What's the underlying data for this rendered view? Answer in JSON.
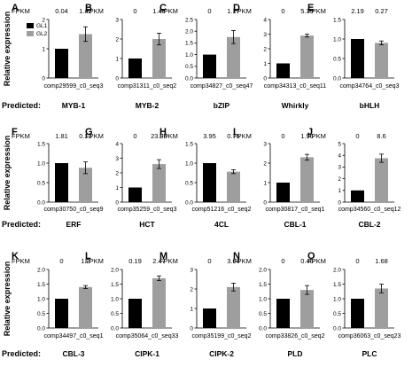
{
  "labels": {
    "ylabel": "Relative expression",
    "predicted": "Predicted:",
    "fpkm": "FPKM"
  },
  "legend": [
    {
      "name": "GL1",
      "color": "#000000"
    },
    {
      "name": "GL2",
      "color": "#9e9e9e"
    }
  ],
  "colors": {
    "GL1": "#000000",
    "GL2": "#9e9e9e"
  },
  "chart_data": [
    {
      "type": "bar",
      "panel": "A",
      "gene": "comp29599_c0_seq3",
      "predicted": "MYB-1",
      "fpkm": [
        "0.04",
        "1.42"
      ],
      "categories": [
        "GL1",
        "GL2"
      ],
      "values": [
        1.0,
        1.5
      ],
      "errors": [
        0,
        0.25
      ],
      "ylim": [
        0,
        2
      ],
      "yticks": [
        "0",
        "1",
        "2"
      ]
    },
    {
      "type": "bar",
      "panel": "B",
      "gene": "comp31311_c0_seq2",
      "predicted": "MYB-2",
      "fpkm": [
        "0",
        "1.48"
      ],
      "categories": [
        "GL1",
        "GL2"
      ],
      "values": [
        1.0,
        2.0
      ],
      "errors": [
        0,
        0.3
      ],
      "ylim": [
        0,
        3
      ],
      "yticks": [
        "0",
        "1",
        "2",
        "3"
      ]
    },
    {
      "type": "bar",
      "panel": "C",
      "gene": "comp34827_c0_seq47",
      "predicted": "bZIP",
      "fpkm": [
        "0",
        "1.17"
      ],
      "categories": [
        "GL1",
        "GL2"
      ],
      "values": [
        1.0,
        1.75
      ],
      "errors": [
        0,
        0.28
      ],
      "ylim": [
        0,
        2.5
      ],
      "yticks": [
        "0.0",
        "0.5",
        "1.0",
        "1.5",
        "2.0",
        "2.5"
      ]
    },
    {
      "type": "bar",
      "panel": "D",
      "gene": "comp34313_c0_seq11",
      "predicted": "Whirkly",
      "fpkm": [
        "0",
        "5.39"
      ],
      "categories": [
        "GL1",
        "GL2"
      ],
      "values": [
        1.0,
        2.9
      ],
      "errors": [
        0,
        0.1
      ],
      "ylim": [
        0,
        4
      ],
      "yticks": [
        "0",
        "1",
        "2",
        "3",
        "4"
      ]
    },
    {
      "type": "bar",
      "panel": "E",
      "gene": "comp34764_c0_seq3",
      "predicted": "bHLH",
      "fpkm": [
        "2.19",
        "0.27"
      ],
      "categories": [
        "GL1",
        "GL2"
      ],
      "values": [
        1.0,
        0.9
      ],
      "errors": [
        0,
        0.05
      ],
      "ylim": [
        0,
        1.5
      ],
      "yticks": [
        "0.0",
        "0.5",
        "1.0",
        "1.5"
      ]
    },
    {
      "type": "bar",
      "panel": "F",
      "gene": "comp30750_c0_seq9",
      "predicted": "ERF",
      "fpkm": [
        "1.81",
        "0.13"
      ],
      "categories": [
        "GL1",
        "GL2"
      ],
      "values": [
        1.0,
        0.88
      ],
      "errors": [
        0,
        0.15
      ],
      "ylim": [
        0,
        1.5
      ],
      "yticks": [
        "0.0",
        "0.5",
        "1.0",
        "1.5"
      ]
    },
    {
      "type": "bar",
      "panel": "G",
      "gene": "comp35259_c0_seq3",
      "predicted": "HCT",
      "fpkm": [
        "0",
        "23.95"
      ],
      "categories": [
        "GL1",
        "GL2"
      ],
      "values": [
        1.0,
        2.6
      ],
      "errors": [
        0,
        0.3
      ],
      "ylim": [
        0,
        4
      ],
      "yticks": [
        "0",
        "1",
        "2",
        "3",
        "4"
      ]
    },
    {
      "type": "bar",
      "panel": "H",
      "gene": "comp51216_c0_seq2",
      "predicted": "4CL",
      "fpkm": [
        "3.95",
        "0.75"
      ],
      "categories": [
        "GL1",
        "GL2"
      ],
      "values": [
        1.0,
        0.78
      ],
      "errors": [
        0,
        0.05
      ],
      "ylim": [
        0,
        1.5
      ],
      "yticks": [
        "0.0",
        "0.5",
        "1.0",
        "1.5"
      ]
    },
    {
      "type": "bar",
      "panel": "I",
      "gene": "comp30817_c0_seq1",
      "predicted": "CBL-1",
      "fpkm": [
        "0",
        "1.96"
      ],
      "categories": [
        "GL1",
        "GL2"
      ],
      "values": [
        1.0,
        2.3
      ],
      "errors": [
        0,
        0.15
      ],
      "ylim": [
        0,
        3
      ],
      "yticks": [
        "0",
        "1",
        "2",
        "3"
      ]
    },
    {
      "type": "bar",
      "panel": "J",
      "gene": "comp34560_c0_seq12",
      "predicted": "CBL-2",
      "fpkm": [
        "0",
        "8.6"
      ],
      "categories": [
        "GL1",
        "GL2"
      ],
      "values": [
        1.0,
        3.75
      ],
      "errors": [
        0,
        0.35
      ],
      "ylim": [
        0,
        5
      ],
      "yticks": [
        "0",
        "1",
        "2",
        "3",
        "4",
        "5"
      ]
    },
    {
      "type": "bar",
      "panel": "K",
      "gene": "comp34497_c0_seq1",
      "predicted": "CBL-3",
      "fpkm": [
        "0",
        "1.2"
      ],
      "categories": [
        "GL1",
        "GL2"
      ],
      "values": [
        1.0,
        1.4
      ],
      "errors": [
        0,
        0.05
      ],
      "ylim": [
        0,
        2
      ],
      "yticks": [
        "0.0",
        "0.5",
        "1.0",
        "1.5",
        "2.0"
      ]
    },
    {
      "type": "bar",
      "panel": "L",
      "gene": "comp35064_c0_seq33",
      "predicted": "CIPK-1",
      "fpkm": [
        "0.19",
        "2.47"
      ],
      "categories": [
        "GL1",
        "GL2"
      ],
      "values": [
        1.0,
        1.7
      ],
      "errors": [
        0,
        0.08
      ],
      "ylim": [
        0,
        2
      ],
      "yticks": [
        "0.0",
        "0.5",
        "1.0",
        "1.5",
        "2.0"
      ]
    },
    {
      "type": "bar",
      "panel": "M",
      "gene": "comp35199_c0_seq2",
      "predicted": "CIPK-2",
      "fpkm": [
        "0",
        "3.04"
      ],
      "categories": [
        "GL1",
        "GL2"
      ],
      "values": [
        1.0,
        2.1
      ],
      "errors": [
        0,
        0.2
      ],
      "ylim": [
        0,
        3
      ],
      "yticks": [
        "0",
        "1",
        "2",
        "3"
      ]
    },
    {
      "type": "bar",
      "panel": "N",
      "gene": "comp33826_c0_seq2",
      "predicted": "PLD",
      "fpkm": [
        "0",
        "0.46"
      ],
      "categories": [
        "GL1",
        "GL2"
      ],
      "values": [
        1.0,
        1.3
      ],
      "errors": [
        0,
        0.15
      ],
      "ylim": [
        0,
        2
      ],
      "yticks": [
        "0.0",
        "0.5",
        "1.0",
        "1.5",
        "2.0"
      ]
    },
    {
      "type": "bar",
      "panel": "O",
      "gene": "comp36063_c0_seq23",
      "predicted": "PLC",
      "fpkm": [
        "0",
        "1.68"
      ],
      "categories": [
        "GL1",
        "GL2"
      ],
      "values": [
        1.0,
        1.35
      ],
      "errors": [
        0,
        0.15
      ],
      "ylim": [
        0,
        2
      ],
      "yticks": [
        "0.0",
        "0.5",
        "1.0",
        "1.5",
        "2.0"
      ]
    }
  ]
}
